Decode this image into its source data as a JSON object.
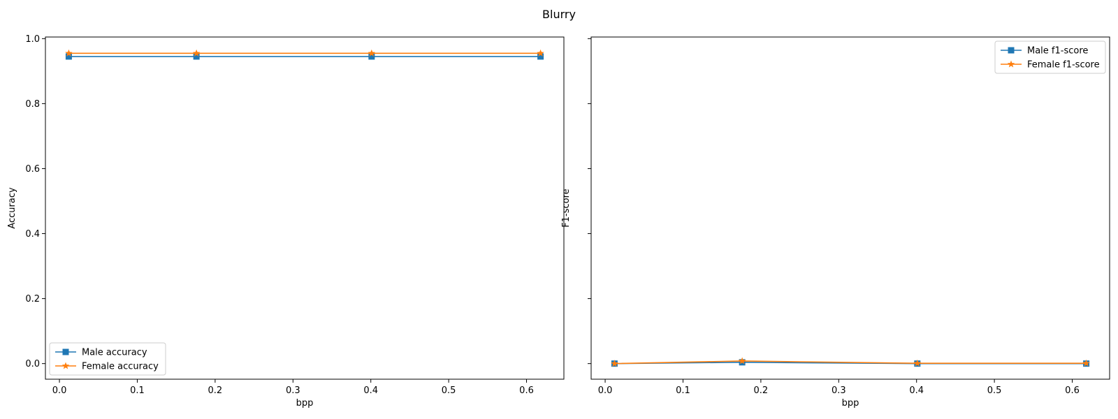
{
  "figure": {
    "suptitle": "Blurry"
  },
  "chart_data": [
    {
      "type": "line",
      "xlabel": "bpp",
      "ylabel": "Accuracy",
      "xlim": [
        -0.018,
        0.648
      ],
      "ylim": [
        -0.048,
        1.005
      ],
      "xticks": [
        0.0,
        0.1,
        0.2,
        0.3,
        0.4,
        0.5,
        0.6
      ],
      "xtick_labels": [
        "0.0",
        "0.1",
        "0.2",
        "0.3",
        "0.4",
        "0.5",
        "0.6"
      ],
      "yticks": [
        0.0,
        0.2,
        0.4,
        0.6,
        0.8,
        1.0
      ],
      "ytick_labels": [
        "0.0",
        "0.2",
        "0.4",
        "0.6",
        "0.8",
        "1.0"
      ],
      "x": [
        0.012,
        0.176,
        0.401,
        0.618
      ],
      "legend_position": "lower-left",
      "grid": false,
      "series": [
        {
          "name": "Male accuracy",
          "values": [
            0.945,
            0.945,
            0.945,
            0.945
          ],
          "color": "#1f77b4",
          "marker": "square"
        },
        {
          "name": "Female accuracy",
          "values": [
            0.955,
            0.955,
            0.955,
            0.955
          ],
          "color": "#ff7f0e",
          "marker": "star"
        }
      ]
    },
    {
      "type": "line",
      "xlabel": "bpp",
      "ylabel": "F1-score",
      "xlim": [
        -0.018,
        0.648
      ],
      "ylim": [
        -0.048,
        1.005
      ],
      "xticks": [
        0.0,
        0.1,
        0.2,
        0.3,
        0.4,
        0.5,
        0.6
      ],
      "xtick_labels": [
        "0.0",
        "0.1",
        "0.2",
        "0.3",
        "0.4",
        "0.5",
        "0.6"
      ],
      "yticks": [
        0.0,
        0.2,
        0.4,
        0.6,
        0.8,
        1.0
      ],
      "ytick_labels": [],
      "x": [
        0.012,
        0.176,
        0.401,
        0.618
      ],
      "legend_position": "upper-right",
      "grid": false,
      "series": [
        {
          "name": "Male f1-score",
          "values": [
            0.0,
            0.004,
            0.0,
            0.0
          ],
          "color": "#1f77b4",
          "marker": "square"
        },
        {
          "name": "Female f1-score",
          "values": [
            0.0,
            0.008,
            0.001,
            0.001
          ],
          "color": "#ff7f0e",
          "marker": "star"
        }
      ]
    }
  ]
}
